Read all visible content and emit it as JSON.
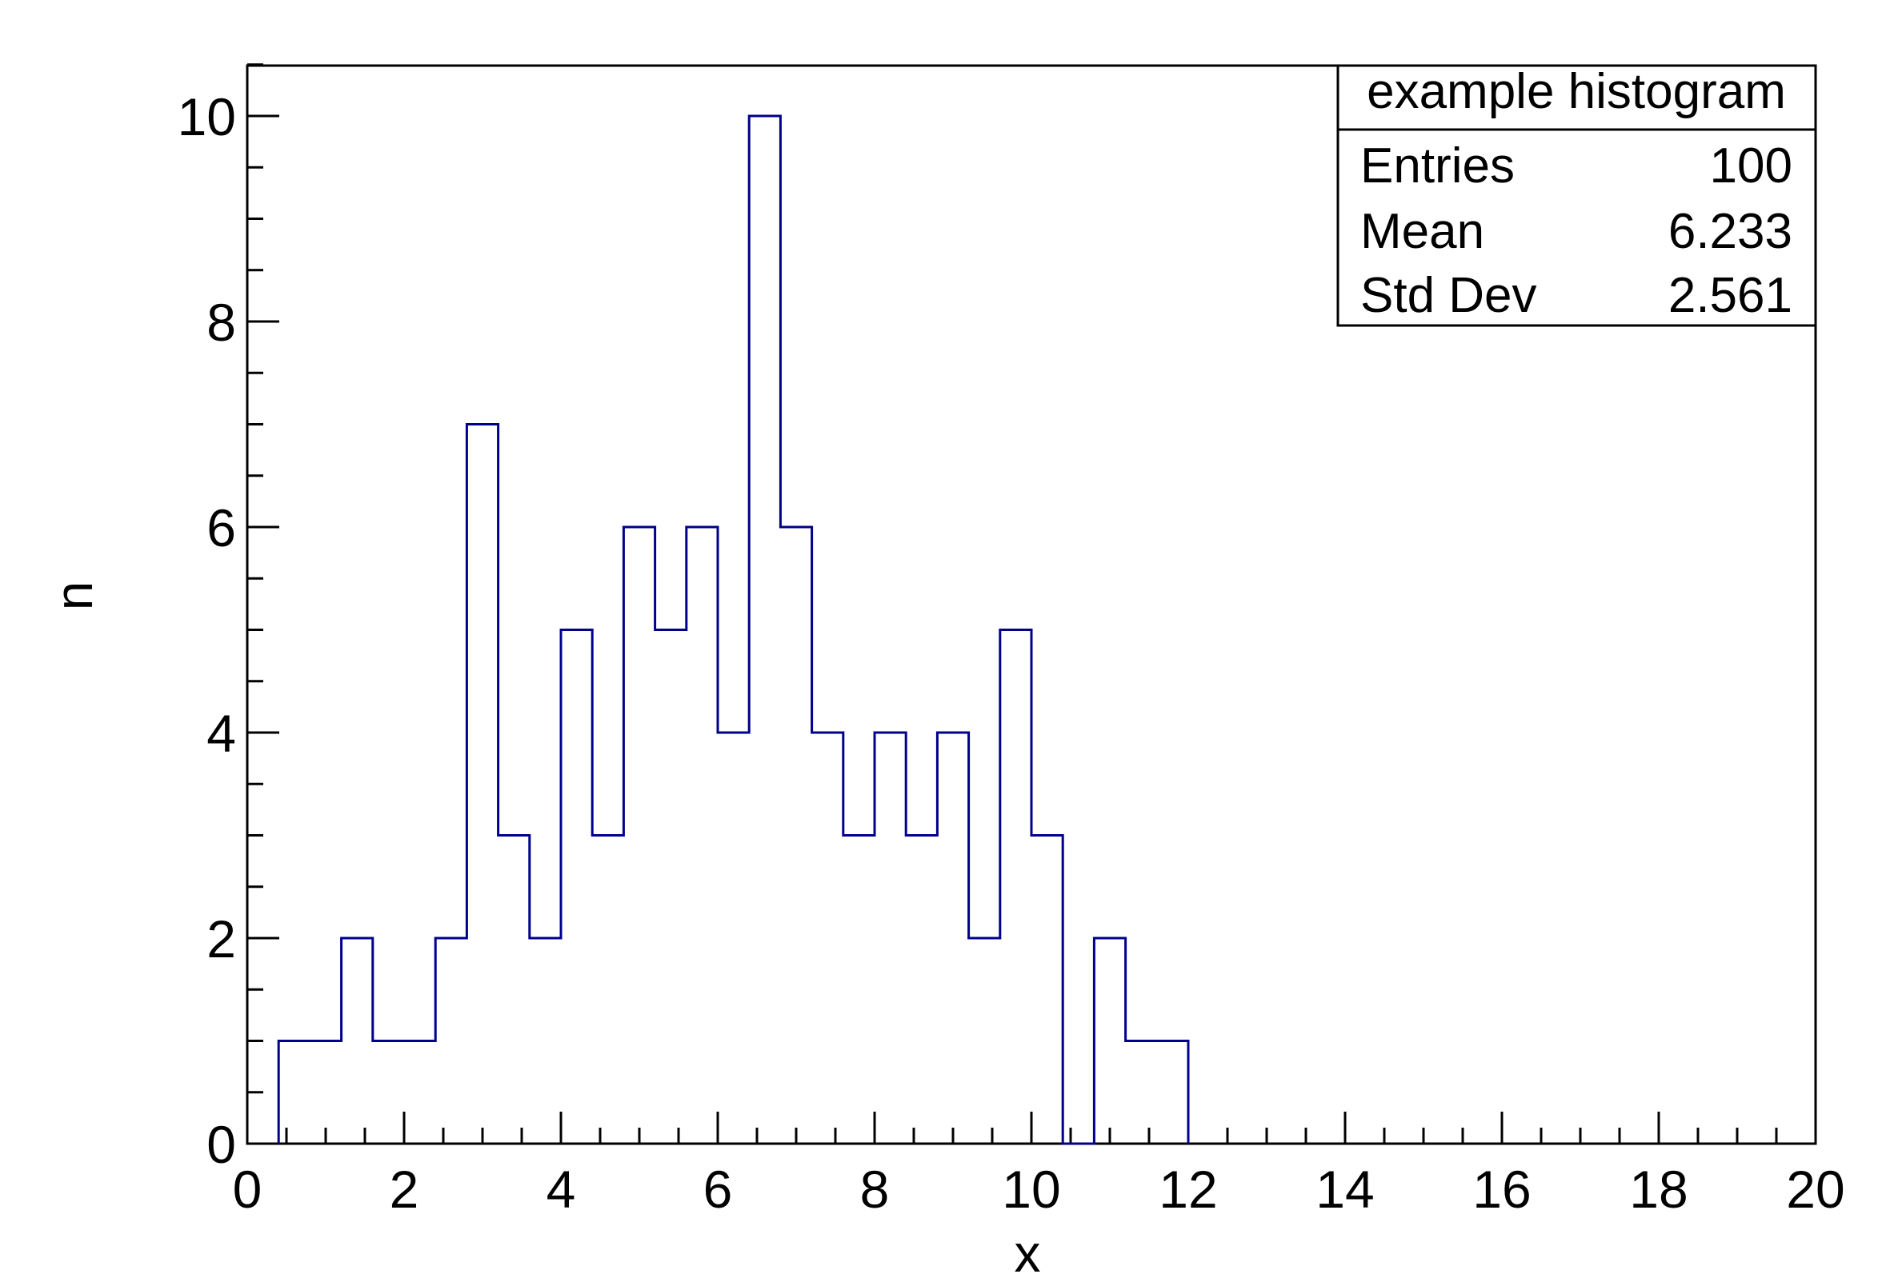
{
  "chart_data": {
    "type": "bar",
    "subtype": "histogram-step",
    "xlabel": "x",
    "ylabel": "n",
    "xlim": [
      0,
      20
    ],
    "ylim": [
      0,
      10.5
    ],
    "x_ticks": [
      0,
      2,
      4,
      6,
      8,
      10,
      12,
      14,
      16,
      18,
      20
    ],
    "y_ticks": [
      0,
      2,
      4,
      6,
      8,
      10
    ],
    "bin_edges": [
      0.4,
      0.8,
      1.2,
      1.6,
      2.0,
      2.4,
      2.8,
      3.2,
      3.6,
      4.0,
      4.4,
      4.8,
      5.2,
      5.6,
      6.0,
      6.4,
      6.8,
      7.2,
      7.6,
      8.0,
      8.4,
      8.8,
      9.2,
      9.6,
      10.0,
      10.4,
      10.8,
      11.2,
      11.6,
      12.0
    ],
    "values": [
      1,
      1,
      2,
      1,
      1,
      2,
      7,
      3,
      2,
      5,
      3,
      6,
      5,
      6,
      4,
      10,
      6,
      4,
      3,
      4,
      3,
      4,
      2,
      5,
      3,
      0,
      2,
      1,
      1
    ],
    "line_color": "#00008b",
    "grid": false,
    "stats_box": {
      "placement": "top-right",
      "title": "example histogram",
      "rows": [
        {
          "label": "Entries",
          "value": "100"
        },
        {
          "label": "Mean",
          "value": "6.233"
        },
        {
          "label": "Std Dev",
          "value": "2.561"
        }
      ]
    }
  }
}
